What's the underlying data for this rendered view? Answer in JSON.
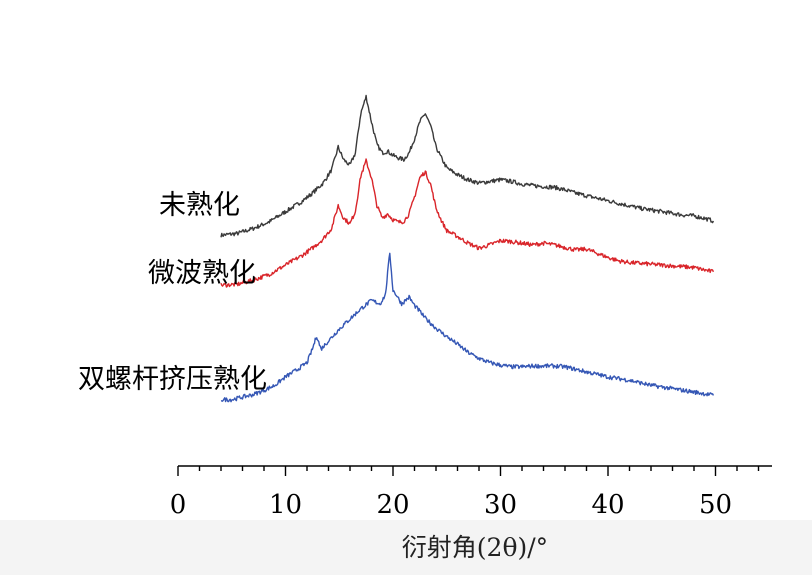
{
  "chart_data": {
    "type": "line",
    "xlabel": "衍射角(2θ)/°",
    "ylabel": "",
    "xlim": [
      0,
      55
    ],
    "x_ticks": [
      "0",
      "10",
      "20",
      "30",
      "40",
      "50"
    ],
    "grid": false,
    "legend": "inline labels at left of each curve",
    "series": [
      {
        "name": "未熟化",
        "color": "#3a3a3a",
        "x": [
          4.0,
          5.5,
          7.0,
          8.5,
          10.0,
          11.5,
          12.5,
          13.5,
          14.3,
          14.9,
          15.4,
          16.0,
          16.5,
          17.0,
          17.5,
          18.0,
          18.5,
          19.0,
          19.5,
          20.0,
          20.5,
          21.0,
          21.5,
          22.0,
          22.5,
          23.0,
          23.5,
          24.0,
          24.5,
          25.0,
          26.0,
          27.0,
          28.0,
          29.0,
          30.0,
          31.0,
          32.0,
          33.0,
          34.0,
          35.0,
          36.0,
          37.0,
          38.0,
          39.0,
          40.0,
          41.0,
          42.0,
          43.0,
          44.0,
          45.0,
          46.0,
          47.0,
          48.0,
          49.0,
          49.8
        ],
        "values": [
          20,
          22,
          28,
          36,
          48,
          60,
          70,
          82,
          98,
          125,
          110,
          103,
          118,
          165,
          185,
          155,
          128,
          118,
          120,
          115,
          112,
          110,
          118,
          135,
          155,
          165,
          150,
          125,
          112,
          100,
          92,
          86,
          82,
          84,
          86,
          84,
          81,
          79,
          78,
          77,
          74,
          70,
          67,
          64,
          61,
          58,
          55,
          52,
          50,
          48,
          46,
          44,
          43,
          40,
          37
        ]
      },
      {
        "name": "微波熟化",
        "color": "#d9252a",
        "x": [
          4.0,
          5.5,
          7.0,
          8.5,
          10.0,
          11.5,
          12.5,
          13.5,
          14.3,
          14.9,
          15.4,
          16.0,
          16.5,
          17.0,
          17.5,
          18.0,
          18.5,
          19.0,
          19.5,
          20.0,
          20.5,
          21.0,
          21.5,
          22.0,
          22.5,
          23.0,
          23.5,
          24.0,
          24.5,
          25.0,
          26.0,
          27.0,
          28.0,
          29.0,
          30.0,
          31.0,
          32.0,
          33.0,
          34.0,
          35.0,
          36.0,
          37.0,
          38.0,
          39.0,
          40.0,
          41.0,
          42.0,
          43.0,
          44.0,
          45.0,
          46.0,
          47.0,
          48.0,
          49.0,
          49.8
        ],
        "values": [
          20,
          21,
          26,
          33,
          44,
          55,
          64,
          75,
          88,
          115,
          100,
          93,
          108,
          150,
          168,
          148,
          115,
          100,
          105,
          98,
          95,
          96,
          105,
          125,
          148,
          155,
          140,
          112,
          97,
          85,
          78,
          70,
          64,
          68,
          73,
          72,
          70,
          68,
          70,
          68,
          65,
          62,
          63,
          58,
          53,
          49,
          47,
          46,
          45,
          44,
          43,
          42,
          41,
          38,
          36
        ]
      },
      {
        "name": "双螺杆挤压熟化",
        "color": "#3557b5",
        "x": [
          4.0,
          5.0,
          6.0,
          7.0,
          8.0,
          9.0,
          10.0,
          11.0,
          12.0,
          12.5,
          12.9,
          13.3,
          14.0,
          15.0,
          16.0,
          17.0,
          18.0,
          18.8,
          19.3,
          19.7,
          20.0,
          20.3,
          20.8,
          21.5,
          22.0,
          22.5,
          23.0,
          24.0,
          25.0,
          26.0,
          27.0,
          28.0,
          29.0,
          30.0,
          31.0,
          32.0,
          33.0,
          34.0,
          35.0,
          36.0,
          37.0,
          38.0,
          39.0,
          40.0,
          41.0,
          42.0,
          43.0,
          44.0,
          45.0,
          46.0,
          47.0,
          48.0,
          49.0,
          49.8
        ],
        "values": [
          10,
          10,
          13,
          16,
          21,
          27,
          37,
          45,
          54,
          70,
          86,
          70,
          80,
          94,
          106,
          118,
          128,
          124,
          135,
          185,
          140,
          135,
          124,
          132,
          122,
          115,
          107,
          95,
          85,
          76,
          66,
          59,
          54,
          51,
          49,
          49,
          50,
          50,
          50,
          49,
          46,
          43,
          40,
          37,
          35,
          33,
          30,
          27,
          25,
          23,
          21,
          19,
          17,
          15
        ]
      }
    ]
  }
}
